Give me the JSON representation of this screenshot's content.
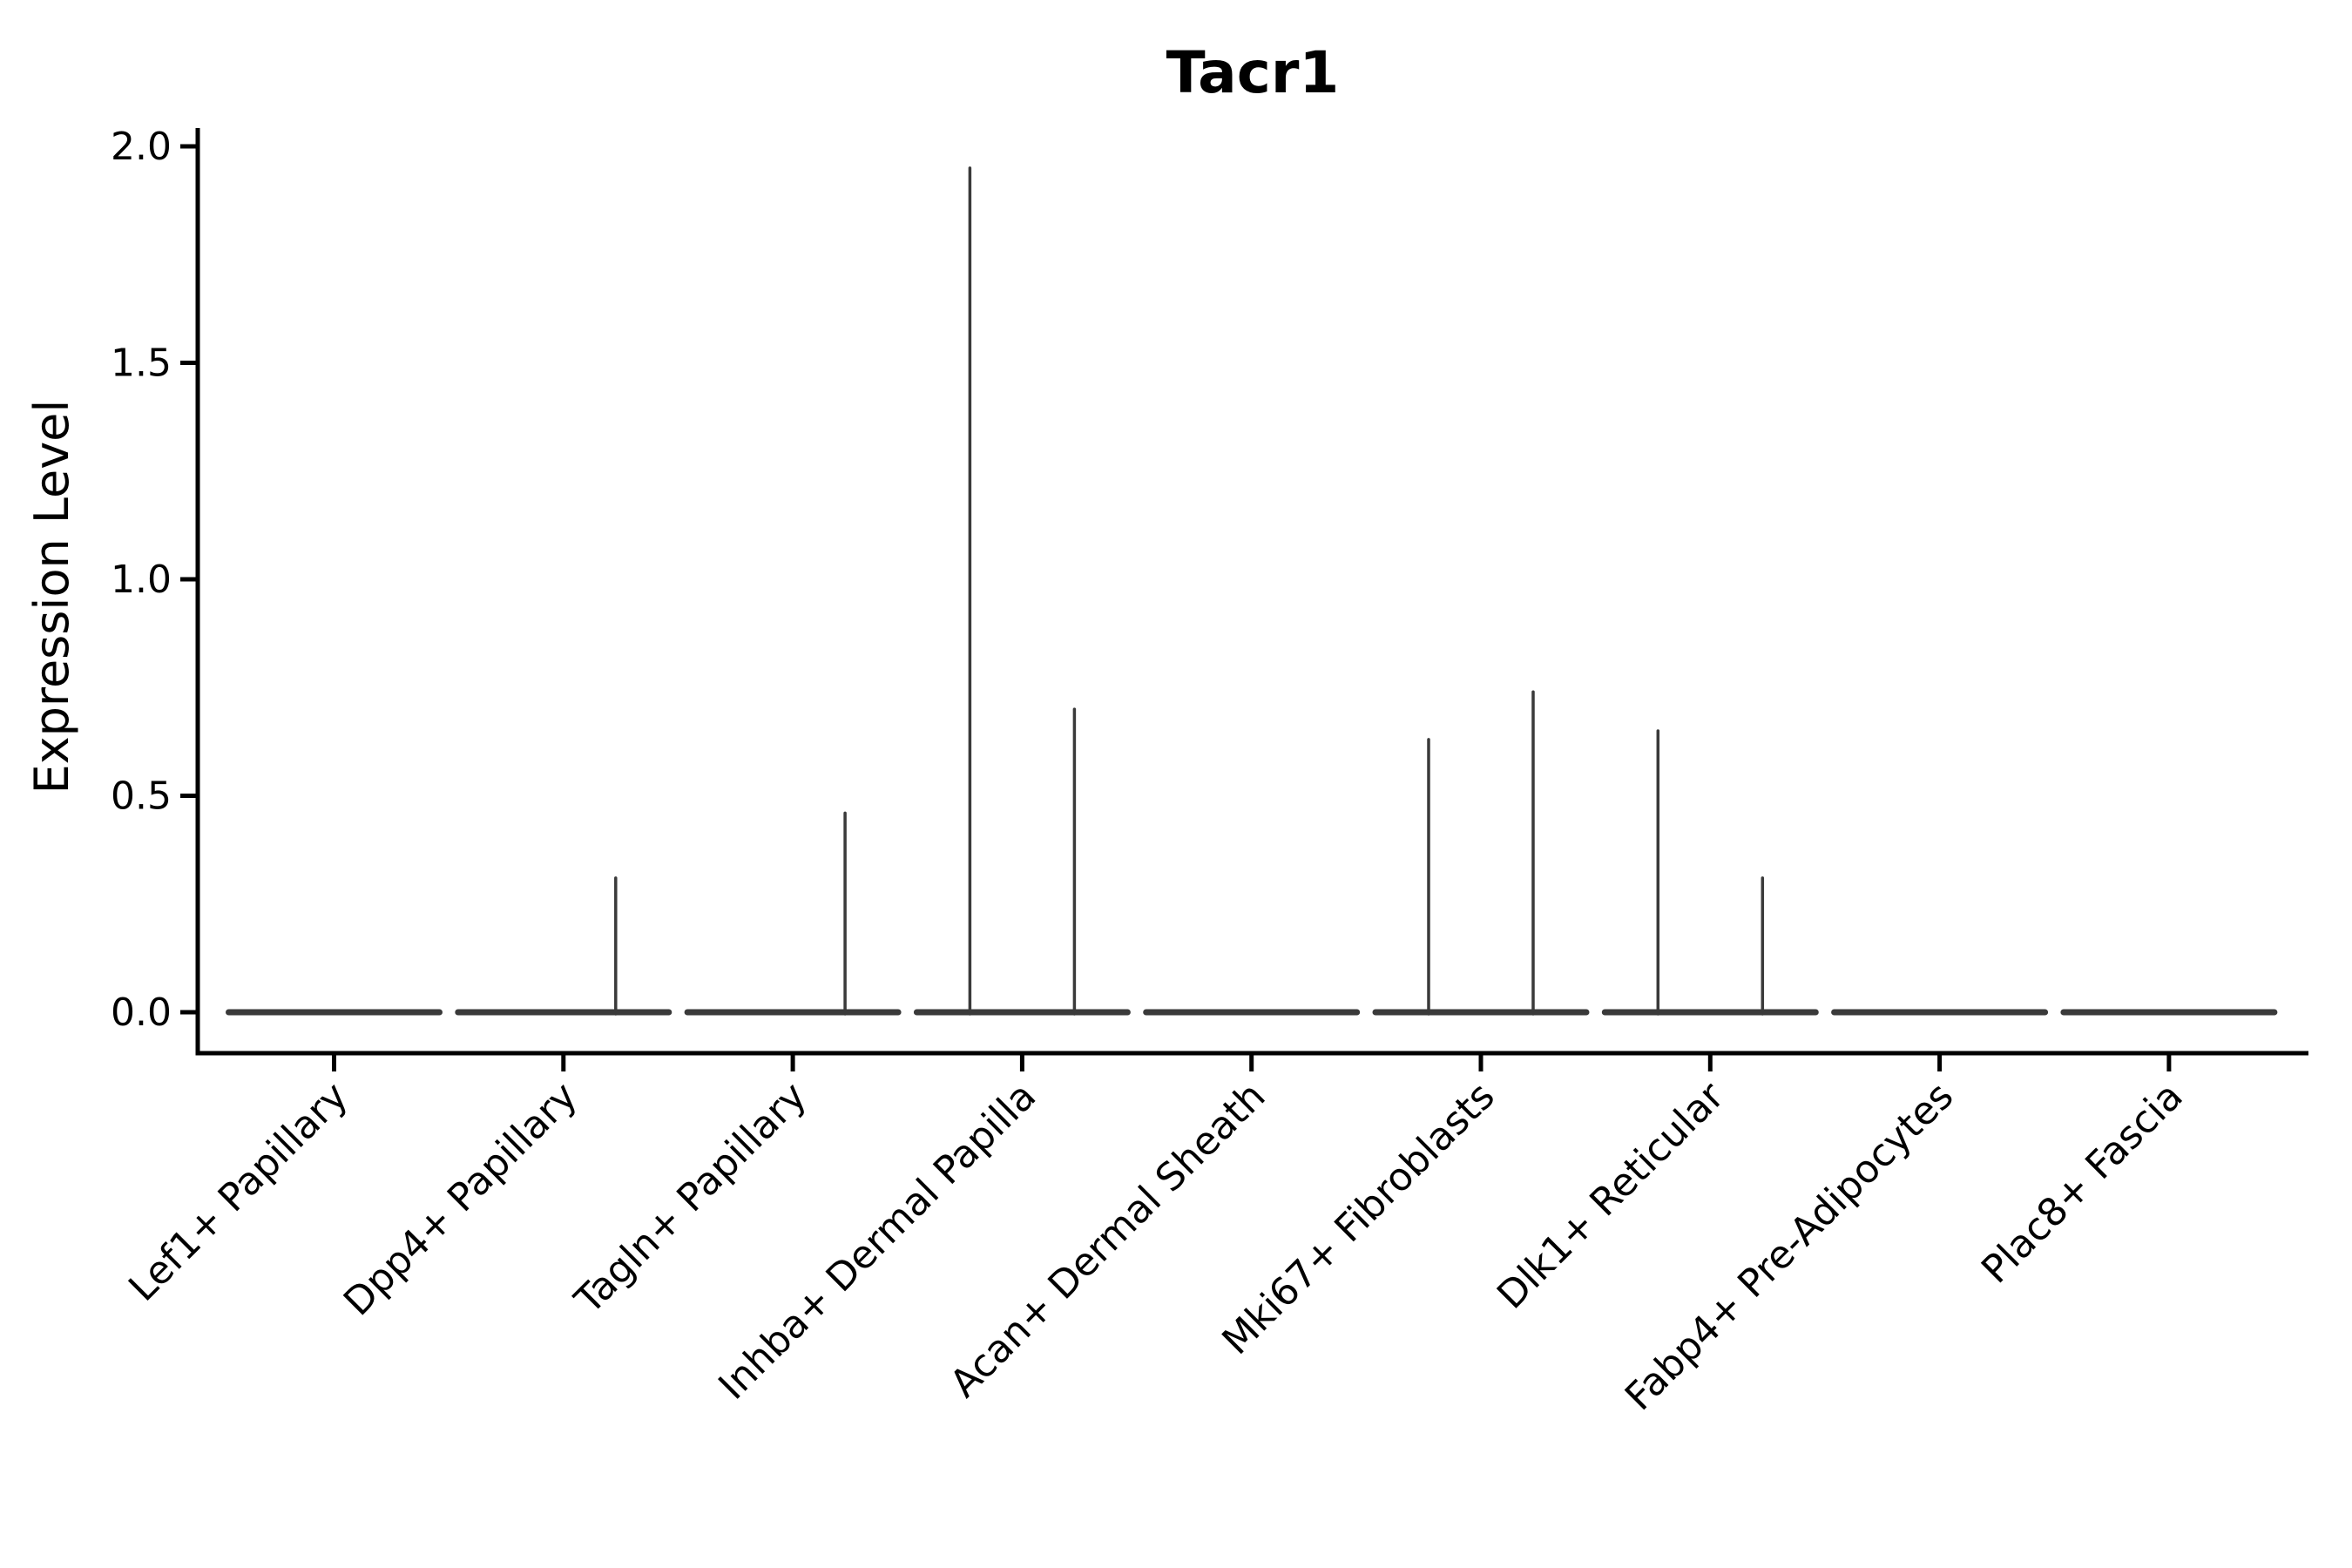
{
  "page": {
    "background_color": "#ffffff",
    "text_color": "#000000"
  },
  "chart_data": {
    "type": "violin",
    "title": "Tacr1",
    "ylabel": "Expression Level",
    "xlabel": "",
    "ylim": [
      0.0,
      2.0
    ],
    "ytick_labels": [
      "0.0",
      "0.5",
      "1.0",
      "1.5",
      "2.0"
    ],
    "ytick_values": [
      0.0,
      0.5,
      1.0,
      1.5,
      2.0
    ],
    "grid": "off",
    "legend": "none",
    "categories": [
      "Lef1+ Papillary",
      "Dpp4+ Papillary",
      "Tagln+ Papillary",
      "Inhba+ Dermal Papilla",
      "Acan+ Dermal Sheath",
      "Mki67+ Fibroblasts",
      "Dlk1+ Reticular",
      "Fabp4+ Pre-Adipocytes",
      "Plac8+ Fascia"
    ],
    "violins": [
      {
        "category": "Lef1+ Papillary",
        "body_value": 0,
        "spikes": []
      },
      {
        "category": "Dpp4+ Papillary",
        "body_value": 0,
        "spikes": [
          {
            "side": "right",
            "max": 0.31
          }
        ]
      },
      {
        "category": "Tagln+ Papillary",
        "body_value": 0,
        "spikes": [
          {
            "side": "right",
            "max": 0.46
          }
        ]
      },
      {
        "category": "Inhba+ Dermal Papilla",
        "body_value": 0,
        "spikes": [
          {
            "side": "left",
            "max": 1.95
          },
          {
            "side": "right",
            "max": 0.7
          }
        ]
      },
      {
        "category": "Acan+ Dermal Sheath",
        "body_value": 0,
        "spikes": []
      },
      {
        "category": "Mki67+ Fibroblasts",
        "body_value": 0,
        "spikes": [
          {
            "side": "left",
            "max": 0.63
          },
          {
            "side": "right",
            "max": 0.74
          }
        ]
      },
      {
        "category": "Dlk1+ Reticular",
        "body_value": 0,
        "spikes": [
          {
            "side": "left",
            "max": 0.65
          },
          {
            "side": "right",
            "max": 0.31
          }
        ]
      },
      {
        "category": "Fabp4+ Pre-Adipocytes",
        "body_value": 0,
        "spikes": []
      },
      {
        "category": "Plac8+ Fascia",
        "body_value": 0,
        "spikes": []
      }
    ],
    "colors": {
      "violin_stroke": "#3a3a3a",
      "spine": "#000000",
      "text": "#000000"
    }
  }
}
